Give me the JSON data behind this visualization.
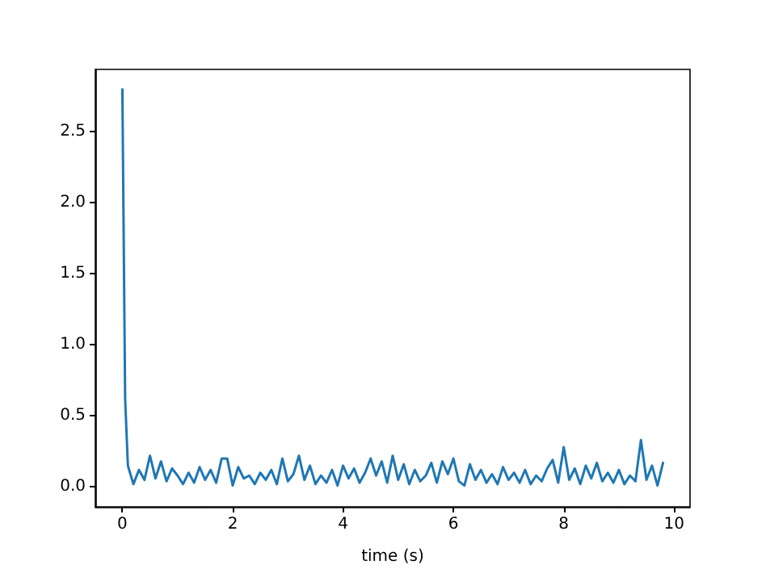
{
  "chart_data": {
    "type": "line",
    "xlabel": "time (s)",
    "x": [
      0,
      0.05,
      0.1,
      0.2,
      0.3,
      0.4,
      0.5,
      0.6,
      0.7,
      0.8,
      0.9,
      1.0,
      1.1,
      1.2,
      1.3,
      1.4,
      1.5,
      1.6,
      1.7,
      1.8,
      1.9,
      2.0,
      2.1,
      2.2,
      2.3,
      2.4,
      2.5,
      2.6,
      2.7,
      2.8,
      2.9,
      3.0,
      3.1,
      3.2,
      3.3,
      3.4,
      3.5,
      3.6,
      3.7,
      3.8,
      3.9,
      4.0,
      4.1,
      4.2,
      4.3,
      4.4,
      4.5,
      4.6,
      4.7,
      4.8,
      4.9,
      5.0,
      5.1,
      5.2,
      5.3,
      5.4,
      5.5,
      5.6,
      5.7,
      5.8,
      5.9,
      6.0,
      6.1,
      6.2,
      6.3,
      6.4,
      6.5,
      6.6,
      6.7,
      6.8,
      6.9,
      7.0,
      7.1,
      7.2,
      7.3,
      7.4,
      7.5,
      7.6,
      7.7,
      7.8,
      7.9,
      8.0,
      8.1,
      8.2,
      8.3,
      8.4,
      8.5,
      8.6,
      8.7,
      8.8,
      8.9,
      9.0,
      9.1,
      9.2,
      9.3,
      9.4,
      9.5,
      9.6,
      9.7,
      9.8
    ],
    "series": [
      {
        "color": "#1f77b4",
        "values": [
          2.8,
          0.62,
          0.15,
          0.02,
          0.12,
          0.05,
          0.22,
          0.06,
          0.18,
          0.04,
          0.13,
          0.08,
          0.02,
          0.1,
          0.03,
          0.14,
          0.05,
          0.12,
          0.03,
          0.2,
          0.2,
          0.01,
          0.14,
          0.06,
          0.08,
          0.02,
          0.1,
          0.05,
          0.12,
          0.02,
          0.2,
          0.04,
          0.09,
          0.22,
          0.05,
          0.15,
          0.02,
          0.08,
          0.03,
          0.12,
          0.01,
          0.15,
          0.06,
          0.13,
          0.03,
          0.1,
          0.2,
          0.08,
          0.18,
          0.03,
          0.22,
          0.05,
          0.16,
          0.02,
          0.12,
          0.04,
          0.08,
          0.17,
          0.03,
          0.18,
          0.09,
          0.2,
          0.04,
          0.01,
          0.16,
          0.05,
          0.12,
          0.03,
          0.09,
          0.02,
          0.14,
          0.05,
          0.1,
          0.03,
          0.12,
          0.02,
          0.08,
          0.04,
          0.13,
          0.19,
          0.03,
          0.28,
          0.05,
          0.13,
          0.02,
          0.15,
          0.06,
          0.17,
          0.04,
          0.1,
          0.03,
          0.12,
          0.02,
          0.08,
          0.04,
          0.33,
          0.05,
          0.15,
          0.01,
          0.17
        ]
      }
    ],
    "xlim": [
      -0.49,
      10.29
    ],
    "ylim": [
      -0.14,
      2.94
    ],
    "xticks": [
      0,
      2,
      4,
      6,
      8,
      10
    ],
    "yticks": [
      {
        "value": 0,
        "label": "0.0"
      },
      {
        "value": 0.5,
        "label": "0.5"
      },
      {
        "value": 1,
        "label": "1.0"
      },
      {
        "value": 1.5,
        "label": "1.5"
      },
      {
        "value": 2,
        "label": "2.0"
      },
      {
        "value": 2.5,
        "label": "2.5"
      }
    ],
    "grid": false,
    "marker": "none",
    "line_style": "solid"
  }
}
